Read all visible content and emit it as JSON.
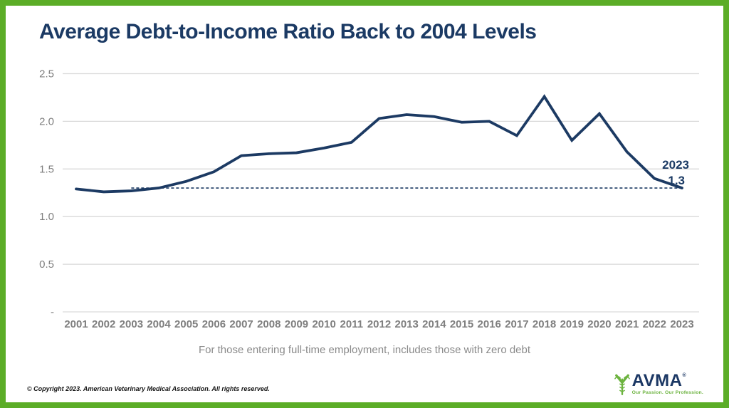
{
  "frame": {
    "border_color": "#5BAD27",
    "background": "#FFFFFF"
  },
  "header": {
    "title": "Average Debt-to-Income Ratio Back to 2004 Levels",
    "title_color": "#1B3A64"
  },
  "chart_data": {
    "type": "line",
    "title": "Average Debt-to-Income Ratio Back to 2004 Levels",
    "categories": [
      "2001",
      "2002",
      "2003",
      "2004",
      "2005",
      "2006",
      "2007",
      "2008",
      "2009",
      "2010",
      "2011",
      "2012",
      "2013",
      "2014",
      "2015",
      "2016",
      "2017",
      "2018",
      "2019",
      "2020",
      "2021",
      "2022",
      "2023"
    ],
    "values": [
      1.29,
      1.26,
      1.27,
      1.3,
      1.37,
      1.47,
      1.64,
      1.66,
      1.67,
      1.72,
      1.78,
      2.03,
      2.07,
      2.05,
      1.99,
      2.0,
      1.85,
      2.26,
      1.8,
      2.08,
      1.68,
      1.4,
      1.3
    ],
    "series_name": "Average debt-to-income ratio",
    "xlabel": "",
    "ylabel": "",
    "ylim": [
      0,
      2.5
    ],
    "ytick_values": [
      0,
      0.5,
      1.0,
      1.5,
      2.0,
      2.5
    ],
    "ytick_labels": [
      "-",
      "0.5",
      "1.0",
      "1.5",
      "2.0",
      "2.5"
    ],
    "grid": true,
    "legend": "none",
    "line_color": "#1C3A63",
    "grid_color": "#D9D9D9",
    "tick_label_color": "#7F7F7F",
    "reference_line": {
      "value": 1.3,
      "start_category": "2003",
      "end_category": "2023",
      "style": "dashed",
      "color": "#1C3A63"
    },
    "annotation": {
      "lines": [
        "2023",
        "1.3"
      ],
      "color": "#1B3A64"
    }
  },
  "subtitle": {
    "text": "For those entering full-time employment, includes those with zero debt",
    "color": "#8A8A8A"
  },
  "footer": {
    "copyright": "© Copyright 2023. American Veterinary Medical Association. All rights reserved."
  },
  "logo": {
    "brand": "AVMA",
    "registered_mark": "®",
    "tagline": "Our Passion. Our Profession.",
    "brand_color": "#1B3764",
    "icon_color": "#6CB33F",
    "tagline_color": "#6CB33F",
    "icon": "veterinary-caduceus-icon"
  }
}
